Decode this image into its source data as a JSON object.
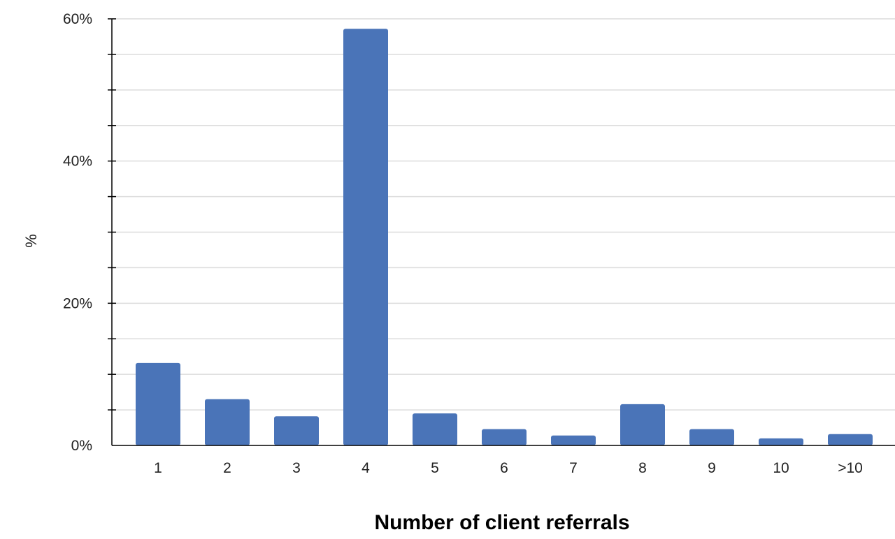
{
  "chart_data": {
    "type": "bar",
    "title": "",
    "xlabel": "Number of client referrals",
    "ylabel": "%",
    "categories": [
      "1",
      "2",
      "3",
      "4",
      "5",
      "6",
      "7",
      "8",
      "9",
      "10",
      ">10"
    ],
    "values": [
      11.6,
      6.5,
      4.1,
      58.6,
      4.5,
      2.3,
      1.4,
      5.8,
      2.3,
      1.0,
      1.6
    ],
    "y_ticks": [
      "0%",
      "20%",
      "40%",
      "60%"
    ],
    "ylim": [
      0,
      60
    ],
    "grid": true,
    "bar_color": "#4a74b8",
    "grid_color": "#dcdcdc",
    "axis_color": "#000000"
  }
}
